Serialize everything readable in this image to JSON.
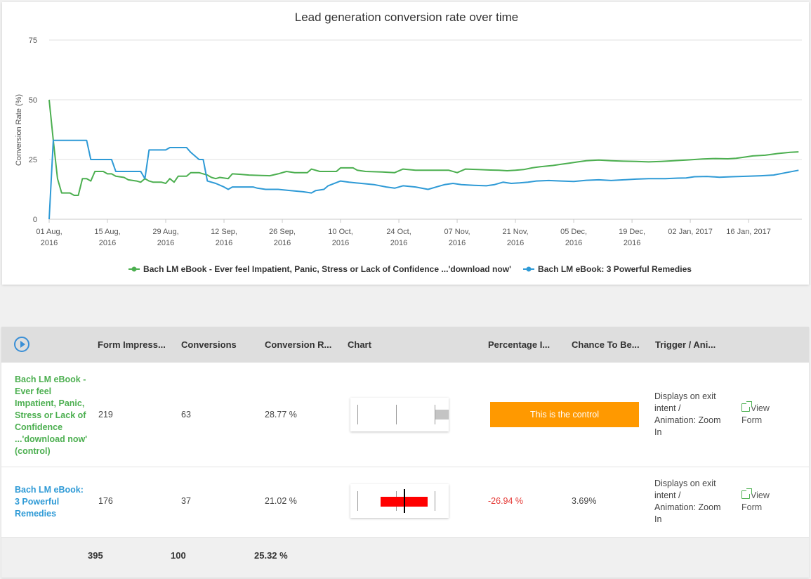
{
  "chart_data": {
    "type": "line",
    "title": "Lead generation conversion rate over time",
    "ylabel": "Conversion Rate (%)",
    "xlabel": "",
    "ylim": [
      0,
      75
    ],
    "yticks": [
      0,
      25,
      50,
      75
    ],
    "x_tick_labels": [
      [
        "01 Aug,",
        "2016"
      ],
      [
        "15 Aug,",
        "2016"
      ],
      [
        "29 Aug,",
        "2016"
      ],
      [
        "12 Sep,",
        "2016"
      ],
      [
        "26 Sep,",
        "2016"
      ],
      [
        "10 Oct,",
        "2016"
      ],
      [
        "24 Oct,",
        "2016"
      ],
      [
        "07 Nov,",
        "2016"
      ],
      [
        "21 Nov,",
        "2016"
      ],
      [
        "05 Dec,",
        "2016"
      ],
      [
        "19 Dec,",
        "2016"
      ],
      [
        "02 Jan, 2017",
        ""
      ],
      [
        "16 Jan, 2017",
        ""
      ]
    ],
    "x_range": [
      "2016-08-01",
      "2017-01-28"
    ],
    "grid": true,
    "legend_position": "bottom",
    "series": [
      {
        "name": "Bach LM eBook - Ever feel Impatient, Panic, Stress or Lack of Confidence ...'download now'",
        "color": "#4caf50",
        "points": [
          [
            "2016-08-01",
            50
          ],
          [
            "2016-08-02",
            33
          ],
          [
            "2016-08-03",
            17
          ],
          [
            "2016-08-04",
            11
          ],
          [
            "2016-08-06",
            11
          ],
          [
            "2016-08-07",
            10
          ],
          [
            "2016-08-08",
            10
          ],
          [
            "2016-08-09",
            17
          ],
          [
            "2016-08-10",
            17
          ],
          [
            "2016-08-11",
            16
          ],
          [
            "2016-08-12",
            20
          ],
          [
            "2016-08-14",
            20
          ],
          [
            "2016-08-15",
            19
          ],
          [
            "2016-08-16",
            19
          ],
          [
            "2016-08-17",
            18
          ],
          [
            "2016-08-19",
            17.5
          ],
          [
            "2016-08-20",
            16.5
          ],
          [
            "2016-08-22",
            16
          ],
          [
            "2016-08-23",
            15.5
          ],
          [
            "2016-08-24",
            17
          ],
          [
            "2016-08-25",
            16
          ],
          [
            "2016-08-26",
            15.5
          ],
          [
            "2016-08-28",
            15.5
          ],
          [
            "2016-08-29",
            15
          ],
          [
            "2016-08-30",
            17
          ],
          [
            "2016-08-31",
            15.5
          ],
          [
            "2016-09-01",
            18
          ],
          [
            "2016-09-03",
            18
          ],
          [
            "2016-09-04",
            19.5
          ],
          [
            "2016-09-06",
            19.5
          ],
          [
            "2016-09-07",
            19
          ],
          [
            "2016-09-08",
            18.5
          ],
          [
            "2016-09-09",
            17.5
          ],
          [
            "2016-09-10",
            17
          ],
          [
            "2016-09-11",
            17.5
          ],
          [
            "2016-09-13",
            17
          ],
          [
            "2016-09-14",
            19
          ],
          [
            "2016-09-16",
            18.8
          ],
          [
            "2016-09-18",
            18.5
          ],
          [
            "2016-09-21",
            18.3
          ],
          [
            "2016-09-23",
            18.2
          ],
          [
            "2016-09-25",
            19
          ],
          [
            "2016-09-27",
            20
          ],
          [
            "2016-09-29",
            19.5
          ],
          [
            "2016-10-02",
            19.5
          ],
          [
            "2016-10-03",
            21
          ],
          [
            "2016-10-05",
            20
          ],
          [
            "2016-10-07",
            20
          ],
          [
            "2016-10-09",
            20
          ],
          [
            "2016-10-10",
            21.5
          ],
          [
            "2016-10-13",
            21.5
          ],
          [
            "2016-10-14",
            20.5
          ],
          [
            "2016-10-16",
            20
          ],
          [
            "2016-10-20",
            19.8
          ],
          [
            "2016-10-23",
            19.5
          ],
          [
            "2016-10-25",
            21
          ],
          [
            "2016-10-28",
            20.5
          ],
          [
            "2016-10-31",
            20.5
          ],
          [
            "2016-11-03",
            20.5
          ],
          [
            "2016-11-05",
            20.5
          ],
          [
            "2016-11-07",
            19.5
          ],
          [
            "2016-11-09",
            21
          ],
          [
            "2016-11-12",
            20.8
          ],
          [
            "2016-11-15",
            20.6
          ],
          [
            "2016-11-17",
            20.5
          ],
          [
            "2016-11-19",
            20.3
          ],
          [
            "2016-11-21",
            20.5
          ],
          [
            "2016-11-23",
            20.8
          ],
          [
            "2016-11-25",
            21.5
          ],
          [
            "2016-11-27",
            22
          ],
          [
            "2016-11-30",
            22.5
          ],
          [
            "2016-12-02",
            23
          ],
          [
            "2016-12-04",
            23.5
          ],
          [
            "2016-12-06",
            24
          ],
          [
            "2016-12-08",
            24.5
          ],
          [
            "2016-12-11",
            24.8
          ],
          [
            "2016-12-14",
            24.5
          ],
          [
            "2016-12-17",
            24.3
          ],
          [
            "2016-12-20",
            24.2
          ],
          [
            "2016-12-23",
            24
          ],
          [
            "2016-12-26",
            24.2
          ],
          [
            "2016-12-29",
            24.5
          ],
          [
            "2017-01-01",
            24.8
          ],
          [
            "2017-01-03",
            25
          ],
          [
            "2017-01-05",
            25.2
          ],
          [
            "2017-01-08",
            25.4
          ],
          [
            "2017-01-11",
            25.3
          ],
          [
            "2017-01-13",
            25.5
          ],
          [
            "2017-01-15",
            26
          ],
          [
            "2017-01-17",
            26.5
          ],
          [
            "2017-01-20",
            26.8
          ],
          [
            "2017-01-23",
            27.5
          ],
          [
            "2017-01-26",
            28
          ],
          [
            "2017-01-28",
            28.2
          ]
        ]
      },
      {
        "name": "Bach LM eBook: 3 Powerful Remedies",
        "color": "#2e9ad6",
        "points": [
          [
            "2016-08-01",
            0
          ],
          [
            "2016-08-02",
            33
          ],
          [
            "2016-08-10",
            33
          ],
          [
            "2016-08-11",
            25
          ],
          [
            "2016-08-13",
            25
          ],
          [
            "2016-08-16",
            25
          ],
          [
            "2016-08-17",
            20
          ],
          [
            "2016-08-20",
            20
          ],
          [
            "2016-08-23",
            20
          ],
          [
            "2016-08-24",
            17
          ],
          [
            "2016-08-25",
            29
          ],
          [
            "2016-08-28",
            29
          ],
          [
            "2016-08-29",
            29
          ],
          [
            "2016-08-30",
            30
          ],
          [
            "2016-09-03",
            30
          ],
          [
            "2016-09-04",
            28
          ],
          [
            "2016-09-06",
            25
          ],
          [
            "2016-09-07",
            25
          ],
          [
            "2016-09-08",
            16
          ],
          [
            "2016-09-10",
            15
          ],
          [
            "2016-09-12",
            13.5
          ],
          [
            "2016-09-13",
            12.5
          ],
          [
            "2016-09-14",
            13.5
          ],
          [
            "2016-09-19",
            13.5
          ],
          [
            "2016-09-20",
            13
          ],
          [
            "2016-09-22",
            12.5
          ],
          [
            "2016-09-25",
            12.5
          ],
          [
            "2016-09-28",
            12
          ],
          [
            "2016-10-01",
            11.5
          ],
          [
            "2016-10-03",
            11
          ],
          [
            "2016-10-04",
            12
          ],
          [
            "2016-10-06",
            12.5
          ],
          [
            "2016-10-07",
            14
          ],
          [
            "2016-10-10",
            16
          ],
          [
            "2016-10-12",
            15.5
          ],
          [
            "2016-10-15",
            15
          ],
          [
            "2016-10-18",
            14.5
          ],
          [
            "2016-10-21",
            13.5
          ],
          [
            "2016-10-23",
            13
          ],
          [
            "2016-10-25",
            14
          ],
          [
            "2016-10-28",
            13.5
          ],
          [
            "2016-10-31",
            12.5
          ],
          [
            "2016-11-02",
            13.5
          ],
          [
            "2016-11-04",
            14.5
          ],
          [
            "2016-11-06",
            15
          ],
          [
            "2016-11-08",
            14.5
          ],
          [
            "2016-11-11",
            14.2
          ],
          [
            "2016-11-14",
            14
          ],
          [
            "2016-11-16",
            14.5
          ],
          [
            "2016-11-18",
            15.5
          ],
          [
            "2016-11-20",
            15
          ],
          [
            "2016-11-22",
            15.2
          ],
          [
            "2016-11-24",
            15.5
          ],
          [
            "2016-11-26",
            16
          ],
          [
            "2016-11-29",
            16.2
          ],
          [
            "2016-12-02",
            16
          ],
          [
            "2016-12-05",
            15.8
          ],
          [
            "2016-12-08",
            16.3
          ],
          [
            "2016-12-11",
            16.5
          ],
          [
            "2016-12-14",
            16.2
          ],
          [
            "2016-12-17",
            16.5
          ],
          [
            "2016-12-20",
            16.8
          ],
          [
            "2016-12-23",
            17
          ],
          [
            "2016-12-27",
            17
          ],
          [
            "2016-12-30",
            17.2
          ],
          [
            "2017-01-01",
            17.3
          ],
          [
            "2017-01-03",
            17.8
          ],
          [
            "2017-01-06",
            17.9
          ],
          [
            "2017-01-09",
            17.6
          ],
          [
            "2017-01-12",
            17.8
          ],
          [
            "2017-01-16",
            18
          ],
          [
            "2017-01-19",
            18.2
          ],
          [
            "2017-01-22",
            18.5
          ],
          [
            "2017-01-25",
            19.5
          ],
          [
            "2017-01-28",
            20.5
          ]
        ]
      }
    ]
  },
  "table": {
    "headers": [
      "Form Impress...",
      "Conversions",
      "Conversion R...",
      "Chart",
      "Percentage I...",
      "Chance To Be...",
      "Trigger / Ani..."
    ],
    "play_icon": "play-circle-icon",
    "rows": [
      {
        "name_lines": [
          "Bach LM eBook -",
          "Ever feel",
          "Impatient, Panic,",
          "Stress or Lack of",
          "Confidence",
          "...'download now'",
          "(control)"
        ],
        "impressions": "219",
        "conversions": "63",
        "rate": "28.77 %",
        "control_label": "This is the control",
        "trigger_lines": [
          "Displays on exit",
          "intent /",
          "Animation: Zoom",
          "In"
        ],
        "view_lines": [
          "View",
          "Form"
        ],
        "color": "#4caf50"
      },
      {
        "name_lines": [
          "Bach LM eBook:",
          "3 Powerful",
          "Remedies"
        ],
        "impressions": "176",
        "conversions": "37",
        "rate": "21.02 %",
        "percentage": "-26.94 %",
        "chance": "3.69%",
        "trigger_lines": [
          "Displays on exit",
          "intent /",
          "Animation: Zoom",
          "In"
        ],
        "view_lines": [
          "View",
          "Form"
        ],
        "color": "#2e9ad6"
      }
    ],
    "totals": {
      "impressions": "395",
      "conversions": "100",
      "rate": "25.32 %"
    },
    "negative_color": "#e53935",
    "control_color": "#ff9900"
  }
}
